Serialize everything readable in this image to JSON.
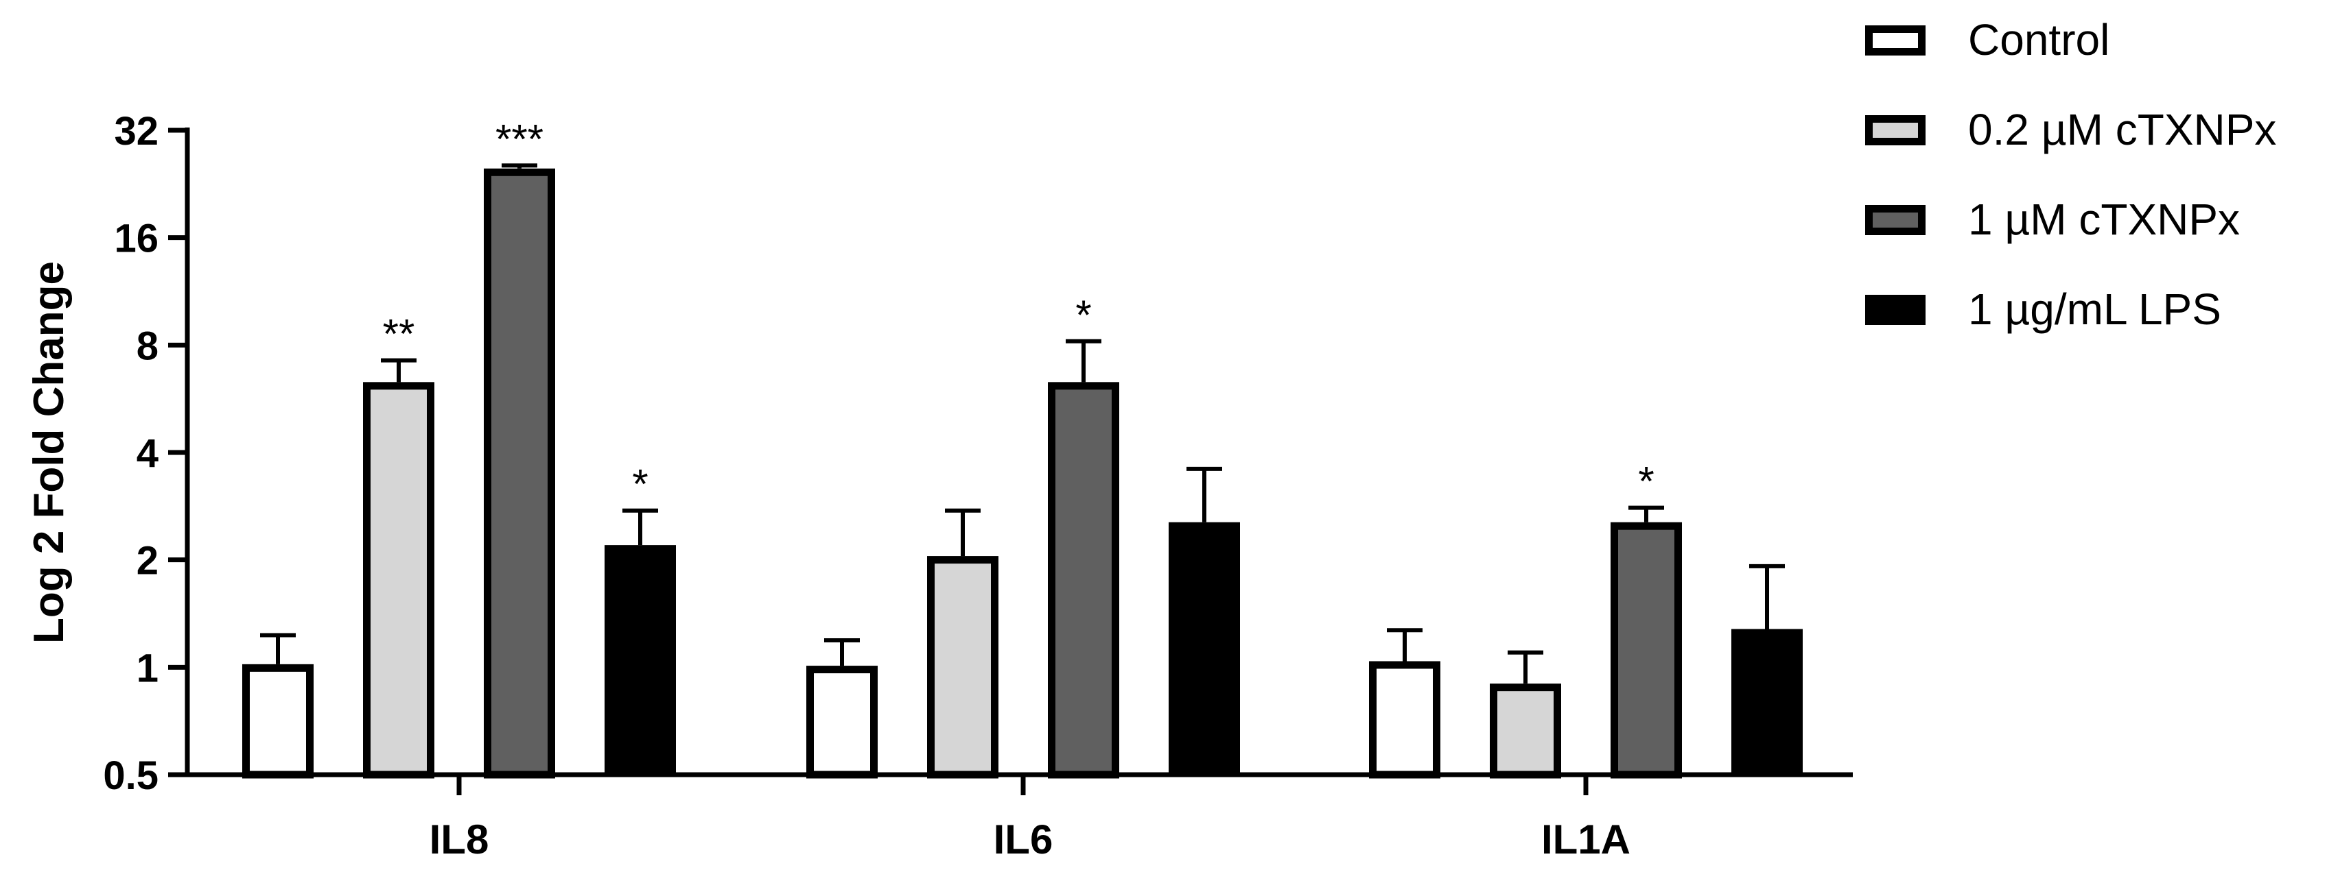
{
  "chart_data": {
    "type": "bar",
    "title": "",
    "xlabel": "",
    "ylabel": "Log 2 Fold Change",
    "y_scale": "log2",
    "ylim": [
      0.5,
      32
    ],
    "y_ticks": [
      "0.5",
      "1",
      "2",
      "4",
      "8",
      "16",
      "32"
    ],
    "y_tick_values": [
      0.5,
      1,
      2,
      4,
      8,
      16,
      32
    ],
    "categories": [
      "IL8",
      "IL6",
      "IL1A"
    ],
    "grid": false,
    "legend_position": "top-right",
    "series": [
      {
        "name": "Control",
        "fill": "#ffffff",
        "values": [
          1.02,
          1.01,
          1.04
        ],
        "errors_upper": [
          1.23,
          1.19,
          1.27
        ],
        "significance": [
          "",
          "",
          ""
        ]
      },
      {
        "name": "0.2 µM cTXNPx",
        "fill": "#d6d6d6",
        "values": [
          6.3,
          2.05,
          0.9
        ],
        "errors_upper": [
          7.25,
          2.75,
          1.1
        ],
        "significance": [
          "**",
          "",
          ""
        ]
      },
      {
        "name": "1 µM cTXNPx",
        "fill": "#606060",
        "values": [
          25.0,
          6.3,
          2.55
        ],
        "errors_upper": [
          25.5,
          8.2,
          2.8
        ],
        "significance": [
          "***",
          "*",
          "*"
        ]
      },
      {
        "name": "1 µg/mL LPS",
        "fill": "#000000",
        "values": [
          2.2,
          2.55,
          1.28
        ],
        "errors_upper": [
          2.75,
          3.6,
          1.92
        ],
        "significance": [
          "*",
          "",
          ""
        ]
      }
    ]
  }
}
